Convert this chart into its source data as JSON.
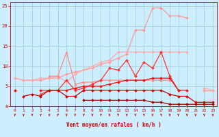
{
  "x": [
    0,
    1,
    2,
    3,
    4,
    5,
    6,
    7,
    8,
    9,
    10,
    11,
    12,
    13,
    14,
    15,
    16,
    17,
    18,
    19,
    20,
    21,
    22,
    23
  ],
  "series": [
    {
      "name": "light_pink_rafales_top",
      "color": "#ff9999",
      "lw": 0.9,
      "marker": "D",
      "ms": 2.0,
      "y": [
        7,
        6.5,
        6.5,
        6.5,
        7,
        7,
        8,
        8.5,
        9,
        9.5,
        10.5,
        11,
        12,
        13,
        19,
        19,
        24.5,
        24.5,
        22.5,
        22.5,
        22,
        null,
        4,
        4
      ]
    },
    {
      "name": "medium_pink_second",
      "color": "#ffaaaa",
      "lw": 0.9,
      "marker": "D",
      "ms": 2.0,
      "y": [
        7,
        6.5,
        6.5,
        7,
        7,
        7.5,
        6,
        8,
        9,
        10,
        11,
        11.5,
        13.5,
        13.5,
        13.5,
        13.5,
        13.5,
        13.5,
        13.5,
        13.5,
        13.5,
        null,
        4.5,
        4
      ]
    },
    {
      "name": "mid_pink_triangle_line",
      "color": "#ff8888",
      "lw": 0.9,
      "marker": "^",
      "ms": 2.5,
      "y": [
        null,
        null,
        null,
        null,
        7.5,
        7.5,
        13.5,
        5.5,
        6,
        6,
        6.5,
        6.5,
        6.5,
        6.5,
        6.5,
        6.5,
        6.5,
        6.5,
        6.5,
        null,
        null,
        null,
        null,
        null
      ]
    },
    {
      "name": "red_jagged_medium",
      "color": "#ff3333",
      "lw": 0.9,
      "marker": "D",
      "ms": 2.0,
      "y": [
        4,
        null,
        null,
        3,
        4,
        4,
        6.5,
        4,
        4.5,
        5.5,
        6.5,
        9.5,
        9,
        11.5,
        7.5,
        11,
        9.5,
        13.5,
        7.5,
        4,
        null,
        null,
        null,
        null
      ]
    },
    {
      "name": "red_smooth_rising",
      "color": "#ee1111",
      "lw": 0.9,
      "marker": "D",
      "ms": 2.0,
      "y": [
        4,
        null,
        null,
        4,
        4,
        4,
        4,
        4.5,
        5,
        5,
        5,
        5.5,
        6,
        6.5,
        6.5,
        6.5,
        7,
        7,
        7,
        4,
        4,
        null,
        null,
        null
      ]
    },
    {
      "name": "dark_red_flat",
      "color": "#cc0000",
      "lw": 0.9,
      "marker": "D",
      "ms": 2.0,
      "y": [
        null,
        2.5,
        3,
        2.5,
        4,
        4,
        2.5,
        2.5,
        4,
        4,
        4,
        4,
        4,
        4,
        4,
        4,
        4,
        4,
        3,
        2.5,
        2.5,
        1,
        1,
        1
      ]
    },
    {
      "name": "darkest_red_bottom",
      "color": "#990000",
      "lw": 0.9,
      "marker": "D",
      "ms": 2.0,
      "y": [
        null,
        null,
        null,
        null,
        null,
        null,
        null,
        null,
        1.5,
        1.5,
        1.5,
        1.5,
        1.5,
        1.5,
        1.5,
        1.5,
        1,
        1,
        0.5,
        0.5,
        0.5,
        0.5,
        0.5,
        0.5
      ]
    }
  ],
  "xlabel": "Vent moyen/en rafales ( km/h )",
  "xlim": [
    -0.5,
    23.5
  ],
  "ylim": [
    0,
    26
  ],
  "yticks": [
    0,
    5,
    10,
    15,
    20,
    25
  ],
  "xticks": [
    0,
    1,
    2,
    3,
    4,
    5,
    6,
    7,
    8,
    9,
    10,
    11,
    12,
    13,
    14,
    15,
    16,
    17,
    18,
    19,
    20,
    21,
    22,
    23
  ],
  "bg_color": "#cceeff",
  "grid_color": "#99cccc",
  "text_color": "#cc0000",
  "arrow_color": "#cc0000",
  "figsize": [
    3.2,
    2.0
  ],
  "dpi": 100
}
